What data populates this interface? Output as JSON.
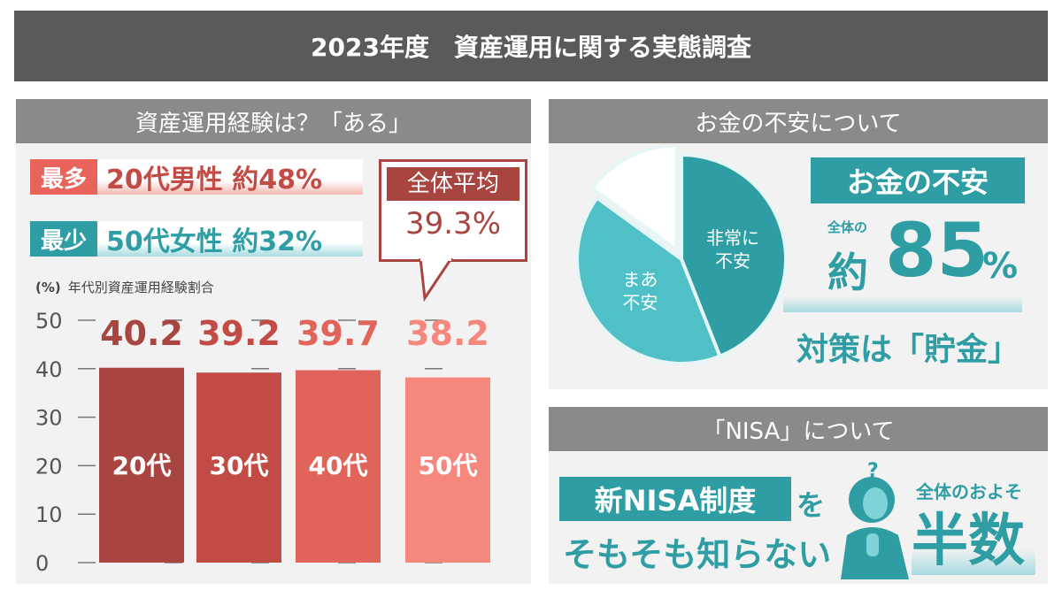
{
  "title": "2023年度　資産運用に関する実態調査",
  "left": {
    "header": "資産運用経験は？「ある」",
    "most": {
      "key": "最多",
      "text": "20代男性 約48%"
    },
    "least": {
      "key": "最少",
      "text": "50代女性 約32%"
    },
    "average": {
      "label": "全体平均",
      "value": "39.3%"
    },
    "unit": "(%)",
    "caption": "年代別資産運用経験割合"
  },
  "chart_data": [
    {
      "type": "bar",
      "categories": [
        "20代",
        "30代",
        "40代",
        "50代"
      ],
      "values": [
        40.2,
        39.2,
        39.7,
        38.2
      ],
      "data_labels": [
        "40.2",
        "39.2",
        "39.7",
        "38.2"
      ],
      "ylabel": "(%)",
      "title": "年代別資産運用経験割合",
      "ylim": [
        0,
        50
      ],
      "yticks": [
        0,
        10,
        20,
        30,
        40,
        50
      ],
      "colors": [
        "#a84540",
        "#c24b45",
        "#e0645a",
        "#f5877c"
      ]
    },
    {
      "type": "pie",
      "labels": [
        "非常に不安",
        "まあ不安",
        ""
      ],
      "label_lines": [
        [
          "非常に",
          "不安"
        ],
        [
          "まあ",
          "不安"
        ]
      ],
      "values": [
        44,
        41,
        15
      ],
      "colors": [
        "#2e9ea4",
        "#4fc0c8",
        "#ffffff"
      ]
    }
  ],
  "money": {
    "header": "お金の不安について",
    "badge": "お金の不安",
    "prefix": "全体の",
    "approx": "約",
    "number": "85",
    "percent": "%",
    "measure": "対策は「貯金」"
  },
  "nisa": {
    "header": "「NISA」について",
    "highlight": "新NISA制度",
    "particle": "を",
    "line2": "そもそも知らない",
    "question": "?",
    "sub": "全体のおよそ",
    "big": "半数"
  },
  "colors": {
    "teal": "#2e9ea4",
    "red": "#a84540",
    "salmon": "#e8645a"
  }
}
